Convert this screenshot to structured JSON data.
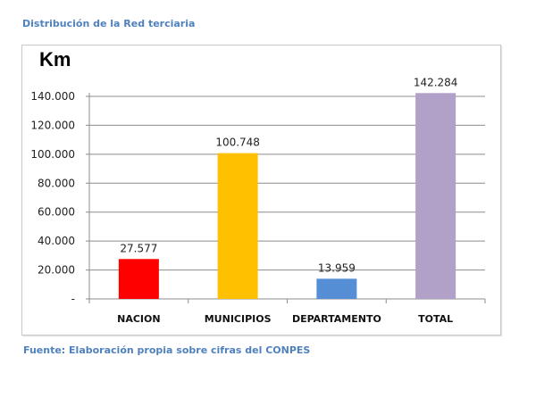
{
  "title": "Distribución de la Red terciaria",
  "footer": "Fuente: Elaboración propia sobre cifras del CONPES",
  "chart_data": {
    "type": "bar",
    "ylabel": "Km",
    "categories": [
      "NACION",
      "MUNICIPIOS",
      "DEPARTAMENTO",
      "TOTAL"
    ],
    "values": [
      27577,
      100748,
      13959,
      142284
    ],
    "data_labels": [
      "27.577",
      "100.748",
      "13.959",
      "142.284"
    ],
    "colors": [
      "#ff0000",
      "#ffc000",
      "#558ed5",
      "#b1a0c7"
    ],
    "ylim": [
      0,
      140000
    ],
    "yticks": [
      0,
      20000,
      40000,
      60000,
      80000,
      100000,
      120000,
      140000
    ],
    "ytick_labels": [
      "-",
      "20.000",
      "40.000",
      "60.000",
      "80.000",
      "100.000",
      "120.000",
      "140.000"
    ],
    "grid": true,
    "legend": "none"
  }
}
